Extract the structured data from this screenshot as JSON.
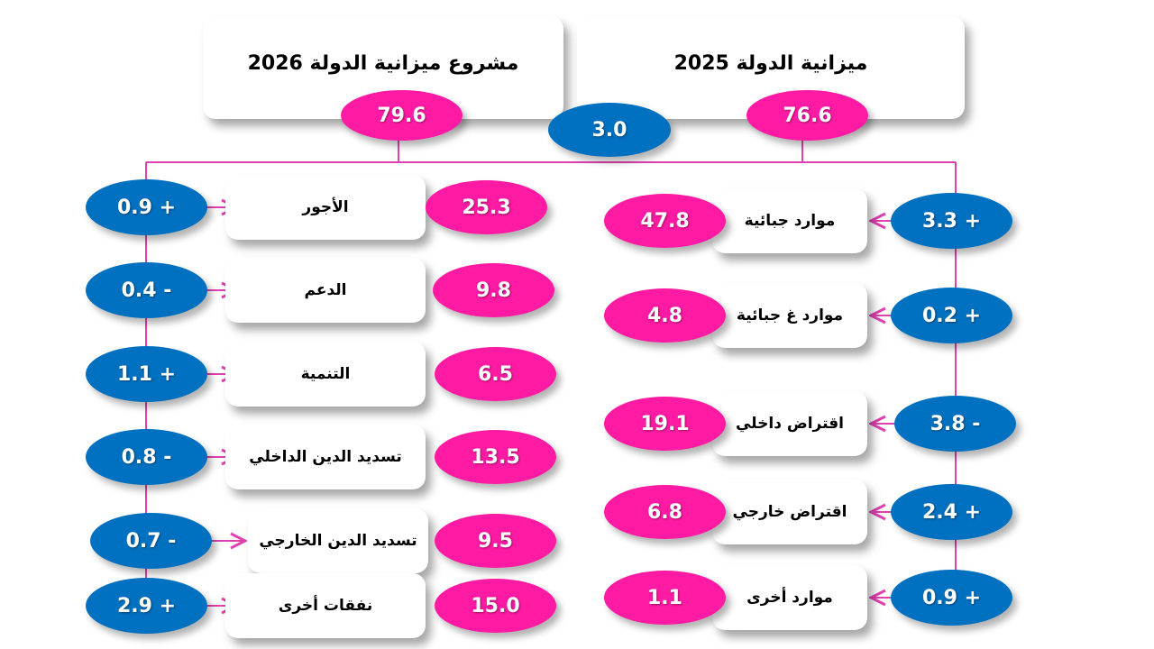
{
  "colors": {
    "pink": "#ff1aa3",
    "blue": "#0070c0",
    "connector": "#e040b0"
  },
  "header": {
    "budget_2026_title": "مشروع ميزانية الدولة 2026",
    "budget_2026_total": "79.6",
    "budget_2025_title": "ميزانية الدولة 2025",
    "budget_2025_total": "76.6",
    "difference": "3.0"
  },
  "expenses": [
    {
      "label": "الأجور",
      "value": "25.3",
      "change": "0.9 +"
    },
    {
      "label": "الدعم",
      "value": "9.8",
      "change": "0.4 -"
    },
    {
      "label": "التنمية",
      "value": "6.5",
      "change": "1.1 +"
    },
    {
      "label": "تسديد الدين الداخلي",
      "value": "13.5",
      "change": "0.8 -"
    },
    {
      "label": "تسديد الدين الخارجي",
      "value": "9.5",
      "change": "0.7 -"
    },
    {
      "label": "نفقات أخرى",
      "value": "15.0",
      "change": "2.9 +"
    }
  ],
  "resources": [
    {
      "label": "موارد جبائية",
      "value": "47.8",
      "change": "3.3 +"
    },
    {
      "label": "موارد غ جبائية",
      "value": "4.8",
      "change": "0.2 +"
    },
    {
      "label": "اقتراض داخلي",
      "value": "19.1",
      "change": "3.8 -"
    },
    {
      "label": "اقتراض خارجي",
      "value": "6.8",
      "change": "2.4 +"
    },
    {
      "label": "موارد أخرى",
      "value": "1.1",
      "change": "0.9 +"
    }
  ]
}
